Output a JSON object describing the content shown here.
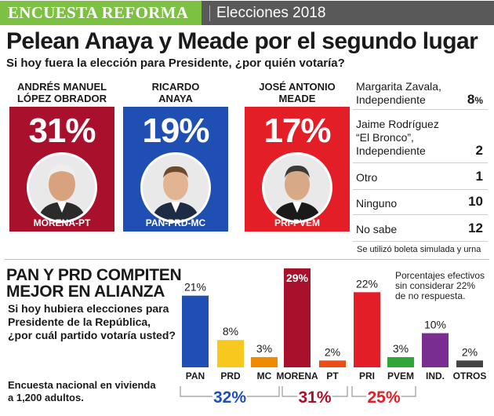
{
  "header": {
    "tag": "ENCUESTA REFORMA",
    "edition": "Elecciones 2018"
  },
  "headline": "Pelean Anaya y Meade por el segundo lugar",
  "subheadline": "Si hoy fuera la elección para Presidente, ¿por quién votaría?",
  "colors": {
    "green": "#7cc142",
    "morena": "#a8102b",
    "pan": "#1f4fb3",
    "pri": "#e41e26",
    "prd": "#f7c81e",
    "mc": "#f28a00",
    "pt": "#ee4c14",
    "pvem": "#2fa637",
    "ind": "#7a2d91",
    "otros": "#444444"
  },
  "candidates": [
    {
      "name_line1": "ANDRÉS MANUEL",
      "name_line2": "LÓPEZ OBRADOR",
      "percent": "31%",
      "party": "MORENA-PT",
      "color": "#a8102b"
    },
    {
      "name_line1": "RICARDO",
      "name_line2": "ANAYA",
      "percent": "19%",
      "party": "PAN-PRD-MC",
      "color": "#1f4fb3"
    },
    {
      "name_line1": "JOSÉ ANTONIO",
      "name_line2": "MEADE",
      "percent": "17%",
      "party": "PRI-PVEM",
      "color": "#e41e26"
    }
  ],
  "others_table": [
    {
      "label_lines": [
        "Margarita Zavala,",
        "Independiente"
      ],
      "value": "8",
      "suffix": "%"
    },
    {
      "label_lines": [
        "Jaime Rodríguez",
        "“El Bronco”,",
        "Independiente"
      ],
      "value": "2",
      "suffix": ""
    },
    {
      "label_lines": [
        "Otro"
      ],
      "value": "1",
      "suffix": ""
    },
    {
      "label_lines": [
        "Ninguno"
      ],
      "value": "10",
      "suffix": ""
    },
    {
      "label_lines": [
        "No sabe"
      ],
      "value": "12",
      "suffix": ""
    }
  ],
  "ballot_note": "Se utilizó boleta simulada y urna",
  "section": {
    "title_line1": "PAN Y PRD COMPITEN",
    "title_line2": "MEJOR EN ALIANZA",
    "question_lines": [
      "Si hoy hubiera elecciones para",
      "Presidente de la República,",
      "¿por cuál partido votaría usted?"
    ],
    "method_lines": [
      "Encuesta nacional en vivienda",
      "a 1,200 adultos."
    ],
    "effective_note_lines": [
      "Porcentajes efectivos",
      "sin considerar 22%",
      "de no respuesta."
    ]
  },
  "chart_data": {
    "type": "bar",
    "categories": [
      "PAN",
      "PRD",
      "MC",
      "MORENA",
      "PT",
      "PRI",
      "PVEM",
      "IND.",
      "OTROS"
    ],
    "values": [
      21,
      8,
      3,
      29,
      2,
      22,
      3,
      10,
      2
    ],
    "value_labels": [
      "21%",
      "8%",
      "3%",
      "29%",
      "2%",
      "22%",
      "3%",
      "10%",
      "2%"
    ],
    "colors": [
      "#1f4fb3",
      "#f7c81e",
      "#f28a00",
      "#a8102b",
      "#ee4c14",
      "#e41e26",
      "#2fa637",
      "#7a2d91",
      "#444444"
    ],
    "groups": [
      {
        "label": "32%",
        "members": [
          "PAN",
          "PRD",
          "MC"
        ],
        "color": "#1f4fb3"
      },
      {
        "label": "31%",
        "members": [
          "MORENA",
          "PT"
        ],
        "color": "#a8102b"
      },
      {
        "label": "25%",
        "members": [
          "PRI",
          "PVEM"
        ],
        "color": "#e41e26"
      }
    ]
  }
}
